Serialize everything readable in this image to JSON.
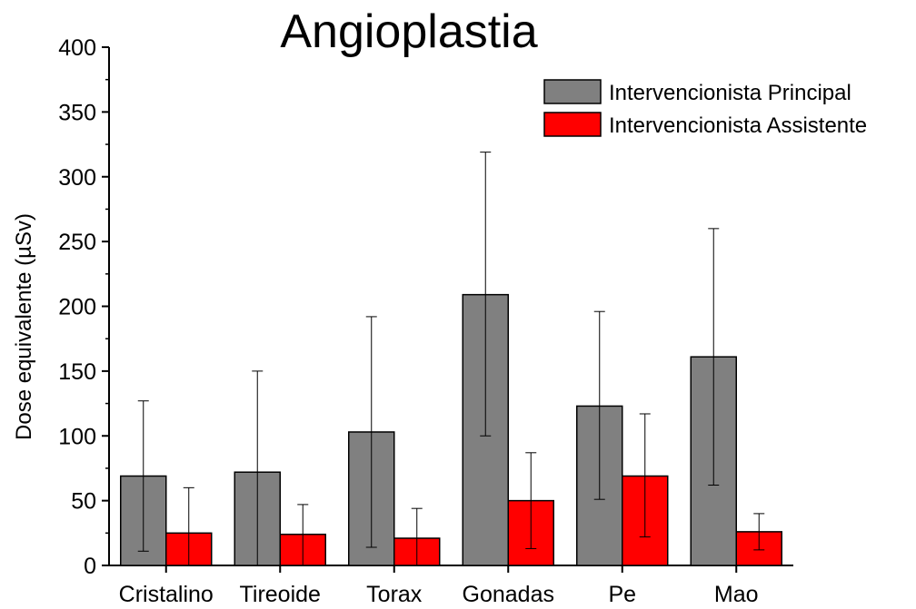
{
  "chart_data": {
    "type": "bar",
    "title": "Angioplastia",
    "ylabel": "Dose equivalente (µSv)",
    "xlabel": "",
    "ylim": [
      0,
      400
    ],
    "yticks": [
      0,
      50,
      100,
      150,
      200,
      250,
      300,
      350,
      400
    ],
    "categories": [
      "Cristalino",
      "Tireoide",
      "Torax",
      "Gonadas",
      "Pe",
      "Mao"
    ],
    "series": [
      {
        "name": "Intervencionista Principal",
        "color": "#808080",
        "values": [
          69,
          72,
          103,
          209,
          123,
          161
        ],
        "error_low": [
          11,
          0,
          14,
          100,
          51,
          62
        ],
        "error_high": [
          127,
          150,
          192,
          319,
          196,
          260
        ]
      },
      {
        "name": "Intervencionista Assistente",
        "color": "#ff0000",
        "values": [
          25,
          24,
          21,
          50,
          69,
          26
        ],
        "error_low": [
          0,
          0,
          0,
          13,
          22,
          12
        ],
        "error_high": [
          60,
          47,
          44,
          87,
          117,
          40
        ]
      }
    ],
    "legend_position": "top-right",
    "grid": false
  }
}
